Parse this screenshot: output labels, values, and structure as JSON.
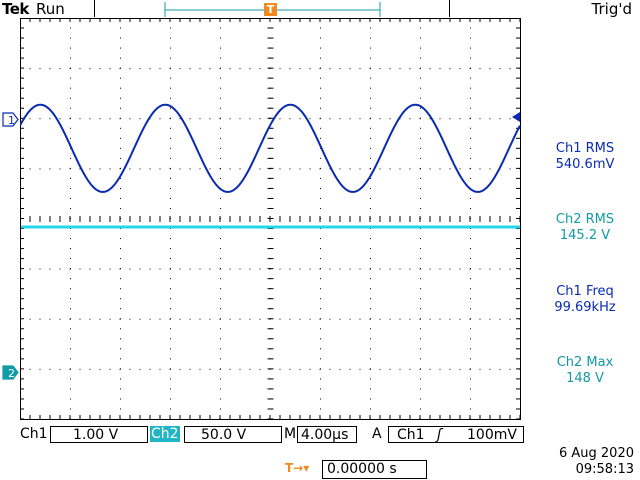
{
  "header": {
    "brand": "Tek",
    "state": "Run",
    "trigger_status": "Trig'd"
  },
  "markers": {
    "trigger_marker": "T",
    "ch1_marker": "1",
    "ch2_marker": "2"
  },
  "measurements": [
    {
      "label": "Ch1 RMS",
      "value": "540.6mV"
    },
    {
      "label": "Ch2 RMS",
      "value": "145.2 V"
    },
    {
      "label": "Ch1 Freq",
      "value": "99.69kHz"
    },
    {
      "label": "Ch2 Max",
      "value": "148 V"
    }
  ],
  "status_bar": {
    "ch1_label": "Ch1",
    "ch1_scale": "1.00 V",
    "ch2_label": "Ch2",
    "ch2_scale": "50.0 V",
    "timebase_label": "M",
    "timebase": "4.00µs",
    "trigger_label": "A",
    "trigger_source": "Ch1",
    "trigger_slope": "ʃ",
    "trigger_level": "100mV"
  },
  "footer": {
    "trigger_position_icon": "T→▾",
    "trigger_position": "0.00000 s",
    "date": "6 Aug 2020",
    "time": "09:58:13"
  },
  "colors": {
    "ch1": "#0a2bb0",
    "ch2": "#21d7ea",
    "trigger": "#f08a21"
  }
}
